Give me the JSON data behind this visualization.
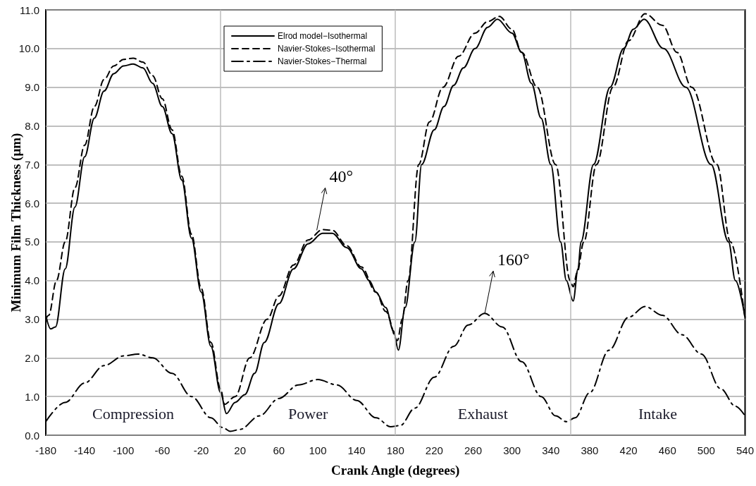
{
  "chart_data": {
    "type": "line",
    "xlabel": "Crank Angle (degrees)",
    "ylabel": "Minimum Film Thickness (μm)",
    "xlim": [
      -180,
      540
    ],
    "xticks": [
      -180,
      -140,
      -100,
      -60,
      -20,
      20,
      60,
      100,
      140,
      180,
      220,
      260,
      300,
      340,
      380,
      420,
      460,
      500,
      540
    ],
    "ylim": [
      0,
      11
    ],
    "yticks": [
      {
        "value": 0,
        "label": "0.0"
      },
      {
        "value": 1,
        "label": "1.0"
      },
      {
        "value": 2,
        "label": "2.0"
      },
      {
        "value": 3,
        "label": "3.0"
      },
      {
        "value": 4,
        "label": "4.0"
      },
      {
        "value": 5,
        "label": "5.0"
      },
      {
        "value": 6,
        "label": "6.0"
      },
      {
        "value": 7,
        "label": "7.0"
      },
      {
        "value": 8,
        "label": "8.0"
      },
      {
        "value": 9,
        "label": "9.0"
      },
      {
        "value": 10,
        "label": "10.0"
      },
      {
        "value": 11,
        "label": "11.0"
      }
    ],
    "grid": "y",
    "legend": "top",
    "marker": "none",
    "ref_lines": [
      {
        "axis": "x",
        "value": 0,
        "color": "#bbbbbb"
      },
      {
        "axis": "x",
        "value": 180,
        "color": "#bbbbbb"
      },
      {
        "axis": "x",
        "value": 360,
        "color": "#bbbbbb"
      }
    ],
    "annotations": [
      "Compression",
      "Power",
      "Exhaust",
      "Intake",
      {
        "text": "40°",
        "x": 99,
        "y": 5.3
      },
      {
        "text": "160°",
        "x": 272,
        "y": 3.15
      }
    ],
    "series": [
      {
        "name": "Elrod model−Isothermal",
        "color": "#000000",
        "line_style": "solid",
        "x": [
          -180,
          -175,
          -170,
          -160,
          -150,
          -140,
          -130,
          -120,
          -110,
          -100,
          -90,
          -80,
          -70,
          -60,
          -50,
          -40,
          -30,
          -20,
          -10,
          0,
          6,
          15,
          25,
          35,
          45,
          60,
          75,
          90,
          105,
          115,
          130,
          145,
          153,
          160,
          170,
          178,
          183,
          190,
          200,
          207,
          220,
          230,
          240,
          250,
          262,
          275,
          285,
          300,
          310,
          320,
          330,
          340,
          350,
          356,
          363,
          368,
          371,
          384,
          401,
          415,
          425,
          436,
          456,
          479,
          505,
          523,
          530,
          540
        ],
        "values": [
          3.1,
          2.75,
          2.8,
          4.3,
          5.9,
          7.2,
          8.2,
          8.9,
          9.35,
          9.55,
          9.6,
          9.5,
          9.1,
          8.5,
          7.8,
          6.6,
          5.1,
          3.7,
          2.3,
          1.1,
          0.56,
          0.85,
          1.05,
          1.6,
          2.4,
          3.4,
          4.3,
          4.95,
          5.22,
          5.22,
          4.85,
          4.3,
          4.0,
          3.7,
          3.3,
          2.7,
          2.2,
          3.3,
          5.0,
          7.0,
          7.9,
          8.5,
          9.05,
          9.5,
          10.0,
          10.55,
          10.76,
          10.4,
          9.9,
          9.1,
          8.2,
          7.0,
          5.0,
          4.0,
          3.47,
          4.3,
          5.0,
          7.0,
          9.0,
          10.0,
          10.5,
          10.76,
          10.0,
          9.0,
          7.0,
          5.0,
          4.0,
          3.05
        ]
      },
      {
        "name": "Navier-Stokes−Isothermal",
        "color": "#000000",
        "line_style": "dashed",
        "x": [
          -180,
          -177,
          -169,
          -160,
          -150,
          -140,
          -130,
          -120,
          -110,
          -100,
          -90,
          -80,
          -70,
          -60,
          -50,
          -40,
          -30,
          -20,
          -10,
          0,
          4,
          15,
          30,
          48,
          60,
          75,
          90,
          105,
          115,
          130,
          145,
          160,
          170,
          182,
          187,
          193,
          204,
          215,
          229,
          245,
          262,
          275,
          287,
          300,
          310,
          326,
          345,
          360,
          363,
          367,
          374,
          387,
          404,
          420,
          437,
          455,
          470,
          485,
          511,
          525,
          540
        ],
        "values": [
          3.0,
          3.1,
          4.0,
          5.0,
          6.4,
          7.5,
          8.5,
          9.2,
          9.55,
          9.72,
          9.75,
          9.65,
          9.3,
          8.7,
          7.9,
          6.7,
          5.2,
          3.8,
          2.4,
          1.2,
          0.8,
          1.0,
          2.0,
          3.0,
          3.6,
          4.4,
          5.05,
          5.32,
          5.3,
          4.9,
          4.35,
          3.7,
          3.2,
          2.45,
          3.0,
          4.0,
          7.0,
          8.1,
          9.0,
          9.8,
          10.4,
          10.7,
          10.83,
          10.5,
          9.9,
          9.0,
          7.0,
          4.0,
          3.84,
          4.2,
          5.0,
          7.0,
          9.0,
          10.2,
          10.9,
          10.6,
          9.9,
          9.0,
          7.0,
          5.0,
          3.0
        ]
      },
      {
        "name": "Navier-Stokes−Thermal",
        "color": "#000000",
        "line_style": "dashdot",
        "x": [
          -180,
          -160,
          -140,
          -120,
          -100,
          -85,
          -70,
          -50,
          -30,
          -10,
          2,
          10,
          20,
          40,
          60,
          80,
          100,
          120,
          140,
          160,
          175,
          185,
          200,
          220,
          240,
          255,
          272,
          290,
          310,
          330,
          345,
          356,
          365,
          380,
          400,
          420,
          437,
          455,
          475,
          495,
          515,
          530,
          540
        ],
        "values": [
          0.35,
          0.85,
          1.35,
          1.8,
          2.05,
          2.1,
          2.0,
          1.6,
          1.0,
          0.45,
          0.2,
          0.1,
          0.15,
          0.5,
          0.95,
          1.3,
          1.44,
          1.3,
          0.9,
          0.45,
          0.22,
          0.25,
          0.7,
          1.5,
          2.3,
          2.85,
          3.15,
          2.8,
          1.9,
          1.0,
          0.5,
          0.35,
          0.45,
          1.1,
          2.2,
          3.05,
          3.33,
          3.1,
          2.6,
          2.1,
          1.2,
          0.75,
          0.5
        ]
      }
    ]
  }
}
